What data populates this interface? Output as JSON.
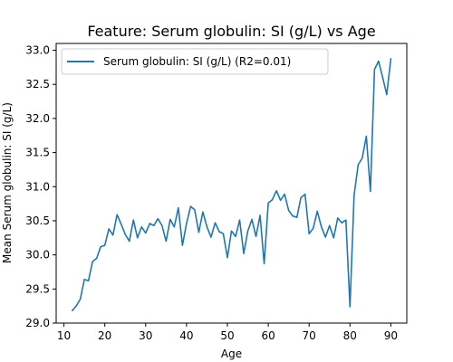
{
  "chart_data": {
    "type": "line",
    "title": "Feature: Serum globulin:  SI (g/L) vs Age",
    "xlabel": "Age",
    "ylabel": "Mean Serum globulin:  SI (g/L)",
    "xlim": [
      8.1,
      93.9
    ],
    "ylim": [
      29.0,
      33.1
    ],
    "xticks": [
      10,
      20,
      30,
      40,
      50,
      60,
      70,
      80,
      90
    ],
    "yticks": [
      29.0,
      29.5,
      30.0,
      30.5,
      31.0,
      31.5,
      32.0,
      32.5,
      33.0
    ],
    "xtick_labels": [
      "10",
      "20",
      "30",
      "40",
      "50",
      "60",
      "70",
      "80",
      "90"
    ],
    "ytick_labels": [
      "29.0",
      "29.5",
      "30.0",
      "30.5",
      "31.0",
      "31.5",
      "32.0",
      "32.5",
      "33.0"
    ],
    "legend_position": "top-left",
    "grid": false,
    "series": [
      {
        "name": "Serum globulin:  SI (g/L) (R2=0.01)",
        "color": "#1f77b4",
        "x": [
          12,
          13,
          14,
          15,
          16,
          17,
          18,
          19,
          20,
          21,
          22,
          23,
          24,
          25,
          26,
          27,
          28,
          29,
          30,
          31,
          32,
          33,
          34,
          35,
          36,
          37,
          38,
          39,
          40,
          41,
          42,
          43,
          44,
          45,
          46,
          47,
          48,
          49,
          50,
          51,
          52,
          53,
          54,
          55,
          56,
          57,
          58,
          59,
          60,
          61,
          62,
          63,
          64,
          65,
          66,
          67,
          68,
          69,
          70,
          71,
          72,
          73,
          74,
          75,
          76,
          77,
          78,
          79,
          80,
          81,
          82,
          83,
          84,
          85,
          86,
          87,
          88,
          89,
          90
        ],
        "y": [
          29.18,
          29.25,
          29.35,
          29.64,
          29.62,
          29.9,
          29.95,
          30.12,
          30.14,
          30.38,
          30.29,
          30.59,
          30.45,
          30.3,
          30.2,
          30.51,
          30.25,
          30.41,
          30.32,
          30.46,
          30.43,
          30.53,
          30.43,
          30.2,
          30.52,
          30.41,
          30.69,
          30.14,
          30.46,
          30.71,
          30.66,
          30.33,
          30.63,
          30.41,
          30.26,
          30.47,
          30.34,
          30.31,
          29.96,
          30.35,
          30.27,
          30.51,
          30.02,
          30.35,
          30.52,
          30.27,
          30.58,
          29.87,
          30.76,
          30.81,
          30.94,
          30.8,
          30.89,
          30.65,
          30.57,
          30.55,
          30.84,
          30.89,
          30.31,
          30.39,
          30.64,
          30.41,
          30.26,
          30.43,
          30.25,
          30.54,
          30.47,
          30.51,
          29.24,
          30.87,
          31.32,
          31.42,
          31.74,
          30.93,
          32.72,
          32.84,
          32.6,
          32.35,
          32.88
        ]
      }
    ]
  }
}
